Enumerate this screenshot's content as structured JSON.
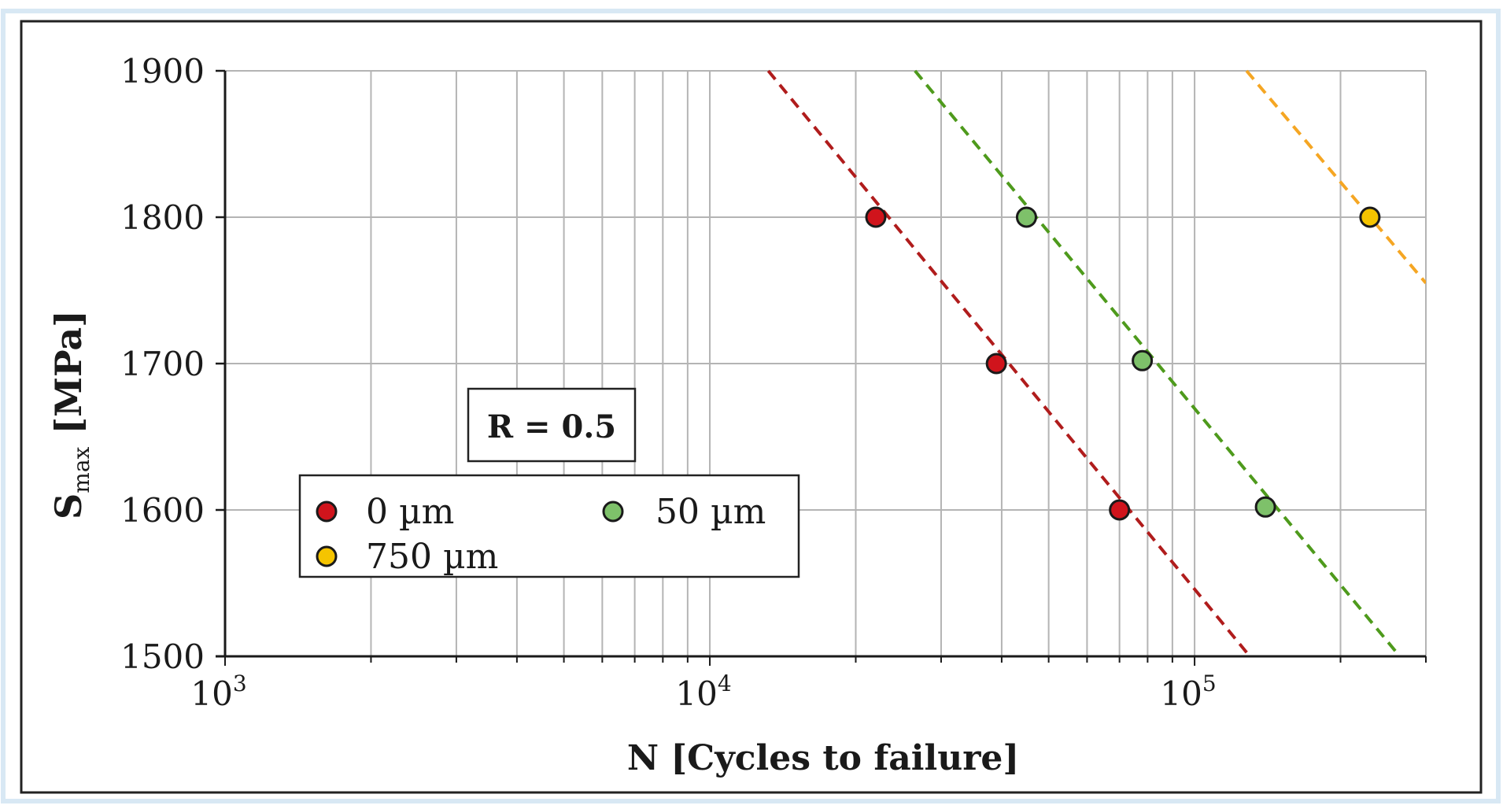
{
  "chart_data": {
    "type": "scatter",
    "xscale": "log",
    "xlabel": "N [Cycles to failure]",
    "ylabel": {
      "base": "S",
      "subscript": "max",
      "rest": " [MPa]"
    },
    "xlim": [
      1000,
      300000
    ],
    "ylim": [
      1500,
      1900
    ],
    "yticks": [
      1500,
      1600,
      1700,
      1800,
      1900
    ],
    "xticks_major": [
      {
        "value": 1000,
        "base": "10",
        "exp": "3"
      },
      {
        "value": 10000,
        "base": "10",
        "exp": "4"
      },
      {
        "value": 100000,
        "base": "10",
        "exp": "5"
      }
    ],
    "annotation": "R = 0.5",
    "series": [
      {
        "name": "0 µm",
        "color": "#d0141c",
        "line_color": "#b01c1c",
        "points": [
          {
            "x": 22000,
            "y": 1800
          },
          {
            "x": 39000,
            "y": 1700
          },
          {
            "x": 70000,
            "y": 1600
          }
        ],
        "fit_line": {
          "x": [
            13200,
            130000
          ],
          "y": [
            1900,
            1500
          ]
        }
      },
      {
        "name": "50 µm",
        "color": "#7ec16a",
        "line_color": "#4e9a1c",
        "points": [
          {
            "x": 45000,
            "y": 1800
          },
          {
            "x": 78000,
            "y": 1702
          },
          {
            "x": 140000,
            "y": 1602
          }
        ],
        "fit_line": {
          "x": [
            26500,
            265000
          ],
          "y": [
            1900,
            1500
          ]
        }
      },
      {
        "name": "750 µm",
        "color": "#f5c400",
        "line_color": "#f5a623",
        "points": [
          {
            "x": 230000,
            "y": 1800
          }
        ],
        "fit_line": {
          "x": [
            128000,
            300000
          ],
          "y": [
            1900,
            1755
          ]
        }
      }
    ],
    "legend": {
      "position": "center-left",
      "columns": 2
    }
  }
}
